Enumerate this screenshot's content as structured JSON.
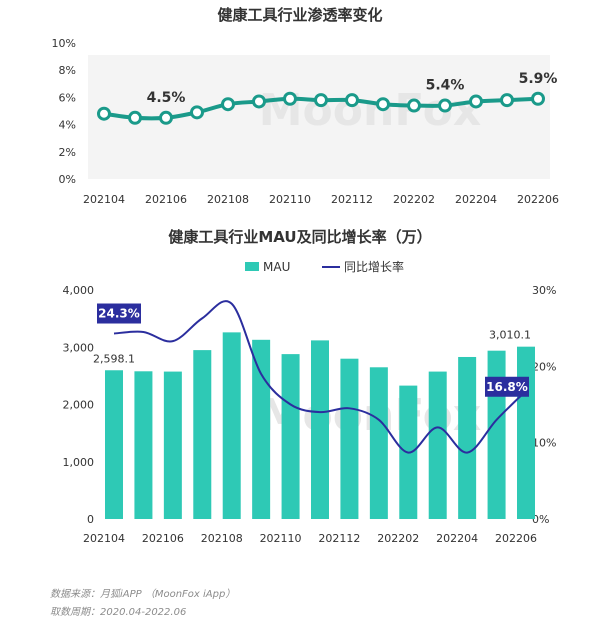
{
  "chart_data": [
    {
      "type": "line",
      "title": "健康工具行业渗透率变化",
      "categories": [
        "202104",
        "202105",
        "202106",
        "202107",
        "202108",
        "202109",
        "202110",
        "202111",
        "202112",
        "202201",
        "202202",
        "202203",
        "202204",
        "202205",
        "202206"
      ],
      "x_tick_labels": [
        "202104",
        "202106",
        "202108",
        "202110",
        "202112",
        "202202",
        "202204",
        "202206"
      ],
      "y_tick_labels": [
        "0%",
        "2%",
        "4%",
        "6%",
        "8%",
        "10%"
      ],
      "ylim": [
        0,
        10
      ],
      "series": [
        {
          "values": [
            4.8,
            4.5,
            4.5,
            4.9,
            5.5,
            5.7,
            5.9,
            5.8,
            5.8,
            5.5,
            5.4,
            5.4,
            5.7,
            5.8,
            5.9
          ],
          "color": "#1a9a8a"
        }
      ],
      "annotations": [
        {
          "index": 2,
          "label": "4.5%"
        },
        {
          "index": 11,
          "label": "5.4%"
        },
        {
          "index": 14,
          "label": "5.9%"
        }
      ],
      "watermark": "MoonFox"
    },
    {
      "type": "bar",
      "title": "健康工具行业MAU及同比增长率（万）",
      "categories": [
        "202104",
        "202105",
        "202106",
        "202107",
        "202108",
        "202109",
        "202110",
        "202111",
        "202112",
        "202201",
        "202202",
        "202203",
        "202204",
        "202205",
        "202206"
      ],
      "x_tick_labels": [
        "202104",
        "202106",
        "202108",
        "202110",
        "202112",
        "202202",
        "202204",
        "202206"
      ],
      "y_tick_labels": [
        "0",
        "1,000",
        "2,000",
        "3,000",
        "4,000"
      ],
      "y2_tick_labels": [
        "0%",
        "10%",
        "20%",
        "30%"
      ],
      "ylim": [
        0,
        4000
      ],
      "y2lim": [
        0,
        30
      ],
      "legend": [
        "MAU",
        "同比增长率"
      ],
      "series": [
        {
          "name": "MAU",
          "values": [
            2598.1,
            2580,
            2575,
            2950,
            3260,
            3130,
            2880,
            3120,
            2800,
            2650,
            2330,
            2575,
            2830,
            2940,
            3010.1
          ],
          "color": "#2ec9b5"
        },
        {
          "name": "同比增长率",
          "values": [
            24.3,
            24.5,
            23.3,
            26.3,
            28.2,
            19.0,
            15.0,
            14.0,
            14.5,
            13.0,
            8.7,
            12.0,
            8.7,
            13.0,
            16.8
          ],
          "color": "#2b2e9e",
          "axis": "right"
        }
      ],
      "bar_value_labels": [
        {
          "index": 0,
          "label": "2,598.1"
        },
        {
          "index": 14,
          "label": "3,010.1"
        }
      ],
      "line_value_labels": [
        {
          "index": 0,
          "label": "24.3%"
        },
        {
          "index": 14,
          "label": "16.8%"
        }
      ],
      "watermark": "MoonFox"
    }
  ],
  "footer": {
    "source": "数据来源：月狐iAPP （MoonFox iApp）",
    "period": "取数周期：2020.04-2022.06"
  }
}
